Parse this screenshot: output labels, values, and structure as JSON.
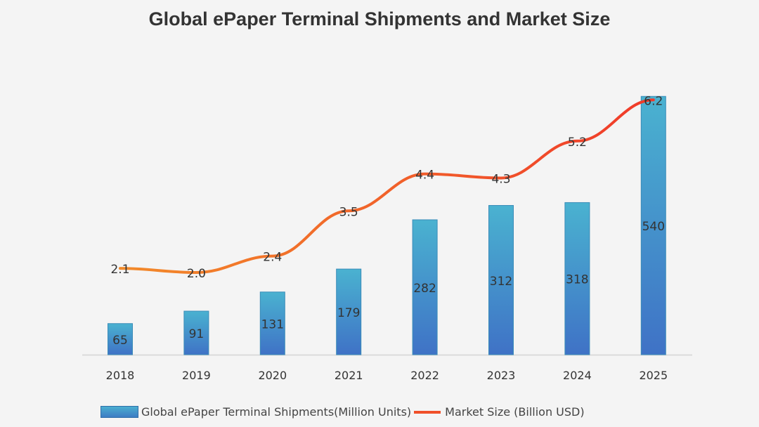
{
  "chart_data": {
    "type": "bar+line",
    "title": "Global ePaper Terminal Shipments and Market Size",
    "categories": [
      "2018",
      "2019",
      "2020",
      "2021",
      "2022",
      "2023",
      "2024",
      "2025"
    ],
    "series": [
      {
        "name": "Global ePaper Terminal Shipments(Million Units)",
        "type": "bar",
        "values": [
          65,
          91,
          131,
          179,
          282,
          312,
          318,
          540
        ],
        "color": "#4aaed0"
      },
      {
        "name": "Market Size (Billion USD)",
        "type": "line",
        "values": [
          2.1,
          2.0,
          2.4,
          3.5,
          4.4,
          4.3,
          5.2,
          6.2
        ],
        "color": "#f0502a"
      }
    ],
    "grid": false,
    "legend": "bottom"
  }
}
